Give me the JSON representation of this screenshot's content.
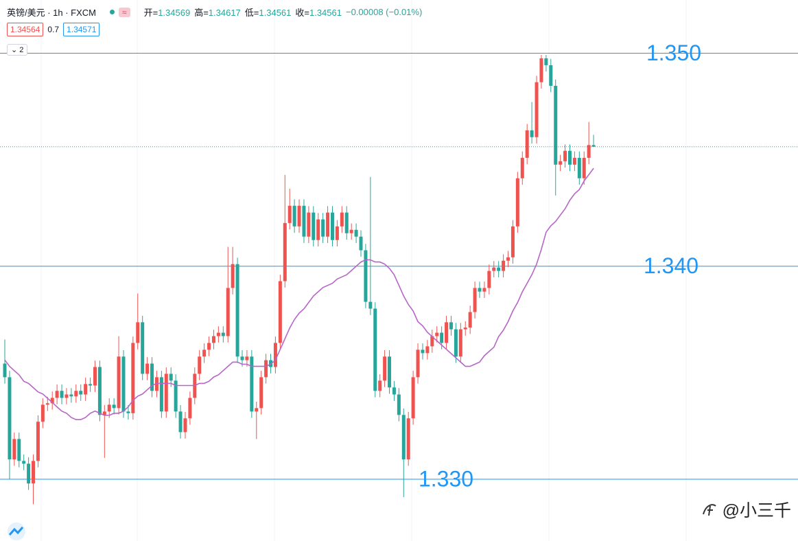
{
  "chart_data": {
    "type": "candlestick",
    "title": "英镑/美元 · 1h · FXCM",
    "ohlc_labels": [
      "开=",
      "高=",
      "低=",
      "收="
    ],
    "change": "−0.00008 (−0.01%)",
    "bid": 1.34564,
    "spread": 0.7,
    "ask": 1.34571,
    "indicator_count": "2",
    "watermark": "@小三千",
    "up_color": "#ef5350",
    "down_color": "#26a69a",
    "ylim": [
      1.3271,
      1.3525
    ],
    "levels": [
      {
        "value": 1.35,
        "label": "1.350"
      },
      {
        "value": 1.34,
        "label": "1.340"
      },
      {
        "value": 1.33,
        "label": "1.330"
      }
    ],
    "level_color": "#2196f3",
    "open": [
      1.33543,
      1.33479,
      1.33093,
      1.33189,
      1.33086,
      1.33073,
      1.3298,
      1.33086,
      1.3327,
      1.3335,
      1.33357,
      1.33382,
      1.33415,
      1.33382,
      1.33398,
      1.33389,
      1.33415,
      1.33398,
      1.33447,
      1.3344,
      1.33527,
      1.33302,
      1.33318,
      1.3335,
      1.33334,
      1.33576,
      1.33318,
      1.3331,
      1.3364,
      1.33737,
      1.33495,
      1.33543,
      1.33415,
      1.33479,
      1.33318,
      1.33495,
      1.33463,
      1.33318,
      1.33221,
      1.33286,
      1.33382,
      1.33495,
      1.33576,
      1.33608,
      1.3364,
      1.33672,
      1.33688,
      1.33672,
      1.33898,
      1.3401,
      1.33576,
      1.33559,
      1.33576,
      1.33318,
      1.33334,
      1.33479,
      1.33559,
      1.33527,
      1.3364,
      1.3393,
      1.34203,
      1.34284,
      1.34187,
      1.34284,
      1.34139,
      1.34252,
      1.34123,
      1.3422,
      1.34139,
      1.34252,
      1.34123,
      1.34187,
      1.34252,
      1.34155,
      1.34171,
      1.34139,
      1.34075,
      1.33833,
      1.33801,
      1.33415,
      1.33463,
      1.33576,
      1.33431,
      1.33398,
      1.33302,
      1.33093,
      1.33286,
      1.33479,
      1.33608,
      1.33592,
      1.33624,
      1.33672,
      1.33688,
      1.3364,
      1.33737,
      1.33704,
      1.33576,
      1.33704,
      1.33712,
      1.33785,
      1.33898,
      1.33881,
      1.33898,
      1.33978,
      1.33994,
      1.33978,
      1.34026,
      1.34042,
      1.34187,
      1.34413,
      1.34509,
      1.34638,
      1.34606,
      1.34864,
      1.34976,
      1.34944,
      1.34847,
      1.34477,
      1.34493,
      1.34542,
      1.34477,
      1.34509,
      1.34413,
      1.34509,
      1.34569
    ],
    "high": [
      1.33656,
      1.33509,
      1.33219,
      1.33219,
      1.33116,
      1.33103,
      1.33116,
      1.333,
      1.3338,
      1.33387,
      1.33412,
      1.33445,
      1.33445,
      1.33428,
      1.33428,
      1.33445,
      1.33445,
      1.33477,
      1.33477,
      1.33557,
      1.33557,
      1.33348,
      1.3338,
      1.3338,
      1.33672,
      1.33606,
      1.33348,
      1.3367,
      1.33872,
      1.33767,
      1.33573,
      1.33573,
      1.33509,
      1.33509,
      1.33525,
      1.33525,
      1.33493,
      1.33348,
      1.33316,
      1.33412,
      1.33525,
      1.33606,
      1.33638,
      1.3367,
      1.33702,
      1.33718,
      1.33718,
      1.34091,
      1.34091,
      1.3404,
      1.33606,
      1.33606,
      1.33606,
      1.33364,
      1.33509,
      1.33589,
      1.33589,
      1.3367,
      1.3396,
      1.34429,
      1.34364,
      1.34314,
      1.34314,
      1.34314,
      1.34282,
      1.34282,
      1.3425,
      1.3425,
      1.34282,
      1.34282,
      1.34217,
      1.34282,
      1.34282,
      1.34201,
      1.34201,
      1.34169,
      1.34105,
      1.34419,
      1.33831,
      1.33493,
      1.33606,
      1.33606,
      1.33461,
      1.33428,
      1.33332,
      1.33316,
      1.33509,
      1.33638,
      1.33638,
      1.33654,
      1.33702,
      1.33718,
      1.33718,
      1.33767,
      1.33767,
      1.33734,
      1.33734,
      1.33742,
      1.33815,
      1.33928,
      1.33928,
      1.33928,
      1.34008,
      1.34024,
      1.34024,
      1.34056,
      1.34072,
      1.34217,
      1.34443,
      1.34539,
      1.34668,
      1.34771,
      1.34894,
      1.34992,
      1.34992,
      1.34974,
      1.34877,
      1.34523,
      1.34572,
      1.34572,
      1.34539,
      1.34539,
      1.34539,
      1.34677,
      1.34617
    ],
    "low": [
      1.33449,
      1.33,
      1.33063,
      1.33056,
      1.33043,
      1.3295,
      1.32883,
      1.33056,
      1.3324,
      1.3332,
      1.33327,
      1.33352,
      1.33352,
      1.33352,
      1.33359,
      1.33359,
      1.33368,
      1.33368,
      1.3341,
      1.3341,
      1.33272,
      1.331,
      1.33288,
      1.33304,
      1.33304,
      1.33288,
      1.3328,
      1.3328,
      1.3361,
      1.33465,
      1.33465,
      1.33385,
      1.33385,
      1.33288,
      1.33288,
      1.33433,
      1.33288,
      1.33191,
      1.33191,
      1.33256,
      1.33352,
      1.33465,
      1.33546,
      1.33578,
      1.3361,
      1.33642,
      1.33642,
      1.33642,
      1.33868,
      1.33546,
      1.33529,
      1.33529,
      1.33288,
      1.33189,
      1.33304,
      1.33449,
      1.33497,
      1.33497,
      1.3361,
      1.339,
      1.34173,
      1.34157,
      1.34157,
      1.34109,
      1.34109,
      1.34093,
      1.34093,
      1.34109,
      1.34109,
      1.34093,
      1.34093,
      1.34157,
      1.34125,
      1.34125,
      1.34109,
      1.34045,
      1.33803,
      1.33771,
      1.33385,
      1.33385,
      1.33433,
      1.33401,
      1.33368,
      1.33272,
      1.32916,
      1.33063,
      1.33256,
      1.33449,
      1.33562,
      1.33562,
      1.33594,
      1.33642,
      1.3361,
      1.3361,
      1.33674,
      1.33546,
      1.33546,
      1.33674,
      1.33682,
      1.33755,
      1.33851,
      1.33851,
      1.33868,
      1.33948,
      1.33948,
      1.33948,
      1.33996,
      1.34012,
      1.34157,
      1.34383,
      1.34479,
      1.34576,
      1.34576,
      1.34834,
      1.34914,
      1.34817,
      1.34332,
      1.34447,
      1.34463,
      1.34447,
      1.34447,
      1.34383,
      1.34383,
      1.34479,
      1.34561
    ],
    "close": [
      1.33479,
      1.33093,
      1.33189,
      1.33086,
      1.33073,
      1.3298,
      1.33086,
      1.3327,
      1.3335,
      1.33357,
      1.33382,
      1.33415,
      1.33382,
      1.33398,
      1.33389,
      1.33415,
      1.33398,
      1.33447,
      1.3344,
      1.33527,
      1.33302,
      1.33318,
      1.3335,
      1.33334,
      1.33576,
      1.33318,
      1.3331,
      1.3364,
      1.33737,
      1.33495,
      1.33543,
      1.33415,
      1.33479,
      1.33318,
      1.33495,
      1.33463,
      1.33318,
      1.33221,
      1.33286,
      1.33382,
      1.33495,
      1.33576,
      1.33608,
      1.3364,
      1.33672,
      1.33688,
      1.33672,
      1.33898,
      1.3401,
      1.33576,
      1.33559,
      1.33576,
      1.33318,
      1.33334,
      1.33479,
      1.33559,
      1.33527,
      1.3364,
      1.3393,
      1.34203,
      1.34284,
      1.34187,
      1.34284,
      1.34139,
      1.34252,
      1.34123,
      1.3422,
      1.34139,
      1.34252,
      1.34123,
      1.34187,
      1.34252,
      1.34155,
      1.34171,
      1.34139,
      1.34075,
      1.33833,
      1.33801,
      1.33415,
      1.33463,
      1.33576,
      1.33431,
      1.33398,
      1.33302,
      1.33093,
      1.33286,
      1.33479,
      1.33608,
      1.33592,
      1.33624,
      1.33672,
      1.33688,
      1.3364,
      1.33737,
      1.33704,
      1.33576,
      1.33704,
      1.33712,
      1.33785,
      1.33898,
      1.33881,
      1.33898,
      1.33978,
      1.33994,
      1.33978,
      1.34026,
      1.34042,
      1.34187,
      1.34413,
      1.34509,
      1.34638,
      1.34606,
      1.34864,
      1.34976,
      1.34944,
      1.34847,
      1.34477,
      1.34493,
      1.34542,
      1.34477,
      1.34509,
      1.34413,
      1.34509,
      1.34569,
      1.34561
    ],
    "series": [
      {
        "color": "#b665c6",
        "values": [
          1.3356,
          1.3353,
          1.3351,
          1.3349,
          1.3346,
          1.3345,
          1.3343,
          1.3341,
          1.334,
          1.3338,
          1.3336,
          1.3334,
          1.3332,
          1.3331,
          1.3329,
          1.3328,
          1.3328,
          1.3329,
          1.3331,
          1.3332,
          1.3331,
          1.333,
          1.333,
          1.3331,
          1.3331,
          1.3332,
          1.3334,
          1.3337,
          1.3339,
          1.334,
          1.3342,
          1.3344,
          1.3345,
          1.3345,
          1.3345,
          1.3345,
          1.3344,
          1.3344,
          1.3344,
          1.3344,
          1.3344,
          1.3345,
          1.3345,
          1.3346,
          1.3348,
          1.3349,
          1.3351,
          1.3353,
          1.3355,
          1.3355,
          1.3354,
          1.3354,
          1.3353,
          1.3353,
          1.3353,
          1.3353,
          1.3354,
          1.3356,
          1.3361,
          1.3366,
          1.3371,
          1.3375,
          1.3378,
          1.338,
          1.3383,
          1.3386,
          1.3388,
          1.339,
          1.3391,
          1.3392,
          1.3394,
          1.3395,
          1.3396,
          1.3398,
          1.34,
          1.3402,
          1.3403,
          1.3403,
          1.3402,
          1.3402,
          1.3401,
          1.3399,
          1.3396,
          1.3391,
          1.3386,
          1.3382,
          1.3379,
          1.3374,
          1.3372,
          1.3369,
          1.3367,
          1.3365,
          1.3363,
          1.3361,
          1.3359,
          1.3357,
          1.3355,
          1.3353,
          1.3353,
          1.3354,
          1.3355,
          1.3358,
          1.336,
          1.3362,
          1.3367,
          1.337,
          1.3374,
          1.3379,
          1.3383,
          1.3388,
          1.3392,
          1.3396,
          1.3401,
          1.3408,
          1.3416,
          1.3419,
          1.3421,
          1.3424,
          1.3427,
          1.3431,
          1.3434,
          1.3436,
          1.344,
          1.3443,
          1.3446
        ]
      }
    ]
  }
}
